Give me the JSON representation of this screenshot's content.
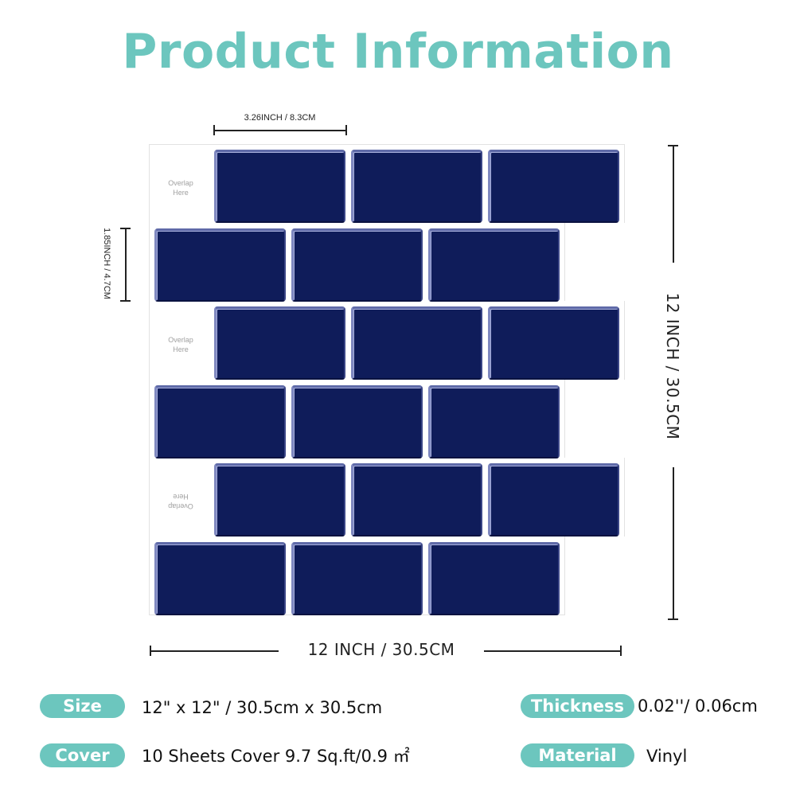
{
  "title": "Product Information",
  "colors": {
    "accent": "#6cc6be",
    "tile": "#0f1c5a"
  },
  "diagram": {
    "tile_width_label": "3.26INCH / 8.3CM",
    "tile_height_label": "1.85INCH / 4.7CM",
    "sheet_width_label": "12 INCH / 30.5CM",
    "sheet_height_label": "12 INCH / 30.5CM",
    "overlap_label_line1": "Overlap",
    "overlap_label_line2": "Here"
  },
  "specs": [
    {
      "label": "Size",
      "value": "12\" x 12\" / 30.5cm x 30.5cm"
    },
    {
      "label": "Cover",
      "value": "10 Sheets Cover 9.7 Sq.ft/0.9 ㎡"
    },
    {
      "label": "Thickness",
      "value": "0.02''/ 0.06cm"
    },
    {
      "label": "Material",
      "value": "Vinyl"
    }
  ]
}
